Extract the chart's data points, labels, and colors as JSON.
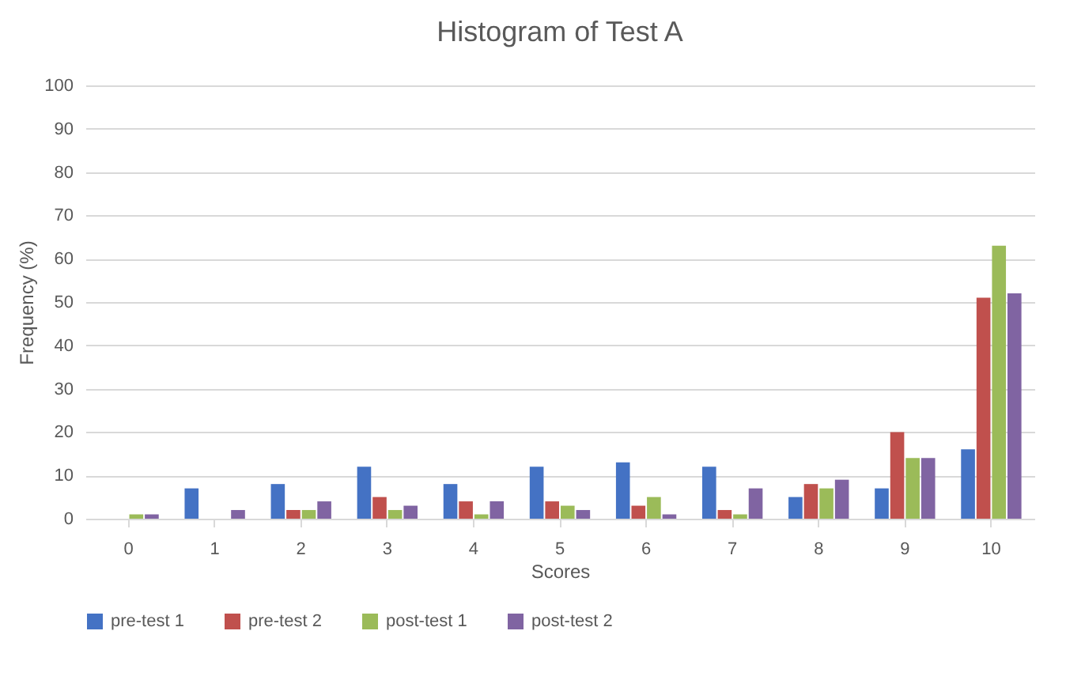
{
  "chart_data": {
    "type": "bar",
    "title": "Histogram of Test A",
    "xlabel": "Scores",
    "ylabel": "Frequency (%)",
    "categories": [
      "0",
      "1",
      "2",
      "3",
      "4",
      "5",
      "6",
      "7",
      "8",
      "9",
      "10"
    ],
    "series": [
      {
        "name": "pre-test 1",
        "color": "#4472c4",
        "values": [
          0,
          7,
          8,
          12,
          8,
          12,
          13,
          12,
          5,
          7,
          16
        ]
      },
      {
        "name": "pre-test 2",
        "color": "#c0504d",
        "values": [
          0,
          0,
          2,
          5,
          4,
          4,
          3,
          2,
          8,
          20,
          51
        ]
      },
      {
        "name": "post-test 1",
        "color": "#9bbb59",
        "values": [
          1,
          0,
          2,
          2,
          1,
          3,
          5,
          1,
          7,
          14,
          63
        ]
      },
      {
        "name": "post-test 2",
        "color": "#8064a2",
        "values": [
          1,
          2,
          4,
          3,
          4,
          2,
          1,
          7,
          9,
          14,
          52
        ]
      }
    ],
    "ylim": [
      0,
      100
    ],
    "yticks": [
      0,
      10,
      20,
      30,
      40,
      50,
      60,
      70,
      80,
      90,
      100
    ],
    "grid": "y",
    "legend": "bottom"
  }
}
